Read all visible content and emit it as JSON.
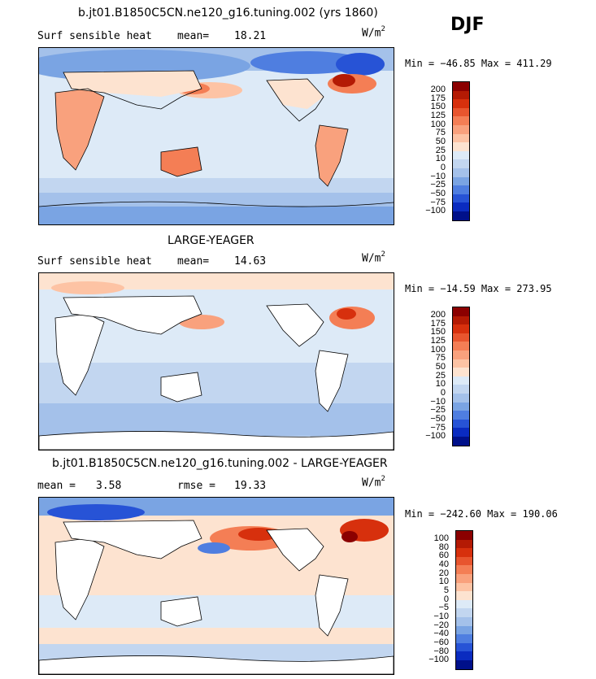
{
  "season": "DJF",
  "panels": [
    {
      "title": "b.jt01.B1850C5CN.ne120_g16.tuning.002 (yrs 1860)",
      "variable": "Surf sensible heat",
      "mean_label": "mean=",
      "mean_value": "18.21",
      "units_base": "W/m",
      "units_exp": "2",
      "minmax": "Min = −46.85 Max = 411.29",
      "colorbar_labels": [
        "200",
        "175",
        "150",
        "125",
        "100",
        "75",
        "50",
        "25",
        "10",
        "0",
        "−10",
        "−25",
        "−50",
        "−75",
        "−100"
      ],
      "colorbar_colors": [
        "#8b0000",
        "#b41a04",
        "#d7300d",
        "#e8552e",
        "#f47e55",
        "#f9a17d",
        "#fdc3a4",
        "#fde3d0",
        "#ddeaf7",
        "#c2d6f0",
        "#a4c1ea",
        "#7aa4e3",
        "#4f7ee0",
        "#2753d6",
        "#0a2bc0",
        "#00108a"
      ]
    },
    {
      "title": "LARGE-YEAGER",
      "variable": "Surf sensible heat",
      "mean_label": "mean=",
      "mean_value": "14.63",
      "units_base": "W/m",
      "units_exp": "2",
      "minmax": "Min = −14.59 Max = 273.95",
      "colorbar_labels": [
        "200",
        "175",
        "150",
        "125",
        "100",
        "75",
        "50",
        "25",
        "10",
        "0",
        "−10",
        "−25",
        "−50",
        "−75",
        "−100"
      ],
      "colorbar_colors": [
        "#8b0000",
        "#b41a04",
        "#d7300d",
        "#e8552e",
        "#f47e55",
        "#f9a17d",
        "#fdc3a4",
        "#fde3d0",
        "#ddeaf7",
        "#c2d6f0",
        "#a4c1ea",
        "#7aa4e3",
        "#4f7ee0",
        "#2753d6",
        "#0a2bc0",
        "#00108a"
      ]
    },
    {
      "title": "b.jt01.B1850C5CN.ne120_g16.tuning.002 - LARGE-YEAGER",
      "mean_label": "mean =",
      "mean_value": "3.58",
      "rmse_label": "rmse =",
      "rmse_value": "19.33",
      "units_base": "W/m",
      "units_exp": "2",
      "minmax": "Min = −242.60 Max = 190.06",
      "colorbar_labels": [
        "100",
        "80",
        "60",
        "40",
        "20",
        "10",
        "5",
        "0",
        "−5",
        "−10",
        "−20",
        "−40",
        "−60",
        "−80",
        "−100"
      ],
      "colorbar_colors": [
        "#8b0000",
        "#b41a04",
        "#d7300d",
        "#e8552e",
        "#f47e55",
        "#f9a17d",
        "#fdc3a4",
        "#fde3d0",
        "#ddeaf7",
        "#c2d6f0",
        "#a4c1ea",
        "#7aa4e3",
        "#4f7ee0",
        "#2753d6",
        "#0a2bc0",
        "#00108a"
      ]
    }
  ]
}
